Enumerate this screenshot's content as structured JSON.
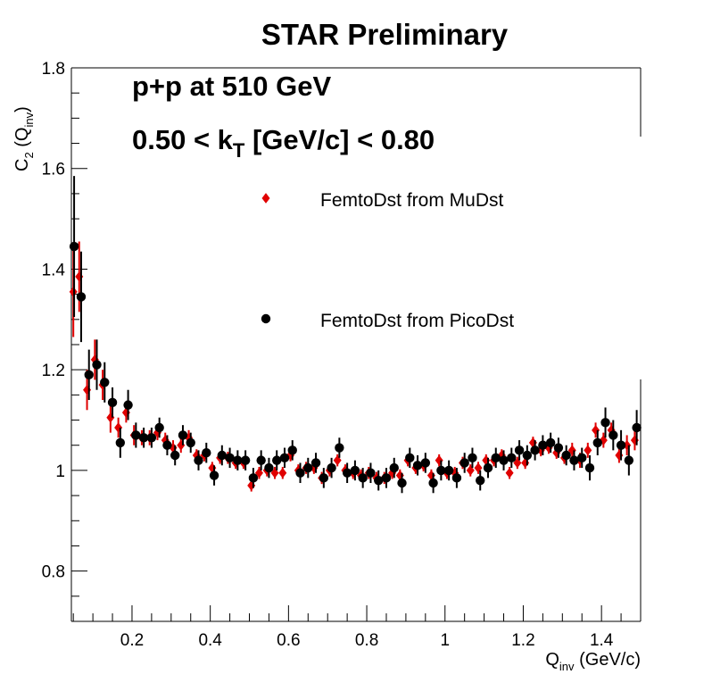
{
  "chart_data": {
    "type": "scatter",
    "title": "STAR Preliminary",
    "xlabel": "Q",
    "xlabel_sub": "inv",
    "xlabel_unit": " (GeV/c)",
    "ylabel_main": "C",
    "ylabel_sub1": "2",
    "ylabel_mid": " (Q",
    "ylabel_sub2": "inv",
    "ylabel_end": ")",
    "xlim": [
      0.045,
      1.5
    ],
    "ylim": [
      0.7,
      1.8
    ],
    "xticks": [
      0.2,
      0.4,
      0.6,
      0.8,
      1.0,
      1.2,
      1.4
    ],
    "xtick_labels": [
      "0.2",
      "0.4",
      "0.6",
      "0.8",
      "1",
      "1.2",
      "1.4"
    ],
    "yticks": [
      0.8,
      1.0,
      1.2,
      1.4,
      1.6,
      1.8
    ],
    "ytick_labels": [
      "0.8",
      "1",
      "1.2",
      "1.4",
      "1.6",
      "1.8"
    ],
    "annotations": {
      "line1": "p+p at 510 GeV",
      "line2_pre": "0.50 < k",
      "line2_sub": "T",
      "line2_post": " [GeV/c] < 0.80"
    },
    "legend_position": "upper-center",
    "series": [
      {
        "name": "FemtoDst from MuDst",
        "color": "#e00000",
        "marker": "diamond",
        "x": [
          0.05,
          0.065,
          0.085,
          0.105,
          0.125,
          0.145,
          0.165,
          0.185,
          0.205,
          0.225,
          0.245,
          0.265,
          0.285,
          0.305,
          0.325,
          0.345,
          0.365,
          0.385,
          0.405,
          0.425,
          0.445,
          0.465,
          0.485,
          0.505,
          0.525,
          0.545,
          0.565,
          0.585,
          0.605,
          0.625,
          0.645,
          0.665,
          0.685,
          0.705,
          0.725,
          0.745,
          0.765,
          0.785,
          0.805,
          0.825,
          0.845,
          0.865,
          0.885,
          0.905,
          0.925,
          0.945,
          0.965,
          0.985,
          1.005,
          1.025,
          1.045,
          1.065,
          1.085,
          1.105,
          1.125,
          1.145,
          1.165,
          1.185,
          1.205,
          1.225,
          1.245,
          1.265,
          1.285,
          1.305,
          1.325,
          1.345,
          1.365,
          1.385,
          1.405,
          1.425,
          1.445,
          1.465,
          1.485
        ],
        "y": [
          1.355,
          1.385,
          1.16,
          1.22,
          1.17,
          1.105,
          1.085,
          1.115,
          1.07,
          1.065,
          1.065,
          1.075,
          1.06,
          1.045,
          1.05,
          1.065,
          1.03,
          1.03,
          1.005,
          1.025,
          1.025,
          1.015,
          1.015,
          0.97,
          0.995,
          1.0,
          0.995,
          0.995,
          1.03,
          1.0,
          1.005,
          1.005,
          0.985,
          1.0,
          1.02,
          1.0,
          0.995,
          0.99,
          0.995,
          0.985,
          0.985,
          0.995,
          0.99,
          1.02,
          1.005,
          1.01,
          0.99,
          1.02,
          0.995,
          0.995,
          1.015,
          1.0,
          1.005,
          1.02,
          1.02,
          1.03,
          0.995,
          1.015,
          1.015,
          1.055,
          1.04,
          1.045,
          1.035,
          1.025,
          1.04,
          1.02,
          1.04,
          1.08,
          1.06,
          1.08,
          1.03,
          1.05,
          1.06
        ],
        "err": [
          0.09,
          0.07,
          0.04,
          0.04,
          0.03,
          0.03,
          0.02,
          0.02,
          0.02,
          0.015,
          0.015,
          0.015,
          0.015,
          0.015,
          0.015,
          0.015,
          0.012,
          0.012,
          0.012,
          0.012,
          0.012,
          0.012,
          0.012,
          0.012,
          0.012,
          0.012,
          0.012,
          0.012,
          0.012,
          0.012,
          0.012,
          0.012,
          0.012,
          0.012,
          0.012,
          0.012,
          0.012,
          0.012,
          0.012,
          0.012,
          0.012,
          0.012,
          0.012,
          0.012,
          0.012,
          0.012,
          0.012,
          0.012,
          0.012,
          0.012,
          0.012,
          0.012,
          0.012,
          0.012,
          0.012,
          0.012,
          0.012,
          0.012,
          0.012,
          0.012,
          0.012,
          0.012,
          0.012,
          0.012,
          0.015,
          0.015,
          0.015,
          0.015,
          0.015,
          0.015,
          0.015,
          0.02,
          0.02
        ]
      },
      {
        "name": "FemtoDst from PicoDst",
        "color": "#000000",
        "marker": "circle",
        "x": [
          0.052,
          0.07,
          0.09,
          0.11,
          0.13,
          0.15,
          0.17,
          0.19,
          0.21,
          0.23,
          0.25,
          0.27,
          0.29,
          0.31,
          0.33,
          0.35,
          0.37,
          0.39,
          0.41,
          0.43,
          0.45,
          0.47,
          0.49,
          0.51,
          0.53,
          0.55,
          0.57,
          0.59,
          0.61,
          0.63,
          0.65,
          0.67,
          0.69,
          0.71,
          0.73,
          0.75,
          0.77,
          0.79,
          0.81,
          0.83,
          0.85,
          0.87,
          0.89,
          0.91,
          0.93,
          0.95,
          0.97,
          0.99,
          1.01,
          1.03,
          1.05,
          1.07,
          1.09,
          1.11,
          1.13,
          1.15,
          1.17,
          1.19,
          1.21,
          1.23,
          1.25,
          1.27,
          1.29,
          1.31,
          1.33,
          1.35,
          1.37,
          1.39,
          1.41,
          1.43,
          1.45,
          1.47,
          1.49
        ],
        "y": [
          1.445,
          1.345,
          1.19,
          1.21,
          1.175,
          1.135,
          1.055,
          1.13,
          1.07,
          1.065,
          1.065,
          1.085,
          1.05,
          1.03,
          1.07,
          1.055,
          1.02,
          1.035,
          0.99,
          1.03,
          1.025,
          1.02,
          1.02,
          0.985,
          1.02,
          1.005,
          1.02,
          1.025,
          1.04,
          0.995,
          1.005,
          1.015,
          0.985,
          1.005,
          1.045,
          0.995,
          1.0,
          0.985,
          0.995,
          0.98,
          0.985,
          1.005,
          0.975,
          1.025,
          1.01,
          1.015,
          0.975,
          1.0,
          1.0,
          0.985,
          1.015,
          1.025,
          0.98,
          1.005,
          1.025,
          1.02,
          1.025,
          1.04,
          1.03,
          1.04,
          1.05,
          1.055,
          1.045,
          1.03,
          1.02,
          1.025,
          1.005,
          1.055,
          1.095,
          1.07,
          1.05,
          1.02,
          1.085
        ],
        "err": [
          0.14,
          0.09,
          0.05,
          0.05,
          0.04,
          0.03,
          0.03,
          0.03,
          0.025,
          0.02,
          0.02,
          0.02,
          0.02,
          0.02,
          0.02,
          0.02,
          0.02,
          0.02,
          0.02,
          0.02,
          0.02,
          0.02,
          0.02,
          0.02,
          0.02,
          0.02,
          0.02,
          0.02,
          0.02,
          0.02,
          0.02,
          0.02,
          0.02,
          0.02,
          0.02,
          0.02,
          0.02,
          0.02,
          0.02,
          0.02,
          0.02,
          0.02,
          0.02,
          0.02,
          0.02,
          0.02,
          0.02,
          0.02,
          0.02,
          0.02,
          0.02,
          0.02,
          0.02,
          0.02,
          0.02,
          0.02,
          0.02,
          0.02,
          0.02,
          0.02,
          0.02,
          0.02,
          0.02,
          0.02,
          0.02,
          0.02,
          0.025,
          0.025,
          0.03,
          0.03,
          0.03,
          0.03,
          0.035
        ]
      }
    ]
  }
}
